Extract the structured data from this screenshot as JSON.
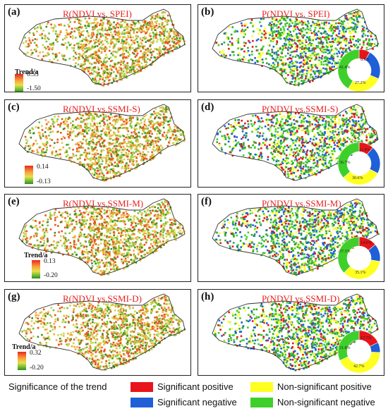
{
  "panels": {
    "a": {
      "label": "(a)",
      "title": "R(NDVI vs. SPEI)",
      "cbar_title": "Trend/a",
      "cbar_max": "0.55",
      "cbar_min": "-1.50"
    },
    "b": {
      "label": "(b)",
      "title": "P(NDVI vs. SPEI)",
      "pct": {
        "sig_pos": "8.5%",
        "sig_neg": "",
        "nonsig_pos": "27.2%",
        "nonsig_neg": "41.4%"
      },
      "fractions": [
        0.085,
        0.229,
        0.272,
        0.414
      ]
    },
    "c": {
      "label": "(c)",
      "title": "R(NDVI vs.SSMI-S)",
      "cbar_title": "Trend/a",
      "cbar_max": "0.14",
      "cbar_min": "-0.13"
    },
    "d": {
      "label": "(d)",
      "title": "P(NDVI vs.SSMI-S)",
      "pct": {
        "sig_pos": "11.4%",
        "sig_neg": "",
        "nonsig_pos": "30.6%",
        "nonsig_neg": "36.7%"
      },
      "fractions": [
        0.114,
        0.213,
        0.306,
        0.367
      ]
    },
    "e": {
      "label": "(e)",
      "title": "R(NDVI vs.SSMI-M)",
      "cbar_title": "Trend/a",
      "cbar_max": "0.13",
      "cbar_min": "-0.20"
    },
    "f": {
      "label": "(f)",
      "title": "P(NDVI vs.SSMI-M)",
      "pct": {
        "sig_pos": "14.0%",
        "sig_neg": "",
        "nonsig_pos": "35.1%",
        "nonsig_neg": "37.3%"
      },
      "fractions": [
        0.14,
        0.136,
        0.351,
        0.373
      ]
    },
    "g": {
      "label": "(g)",
      "title": "R(NDVI vs.SSMI-D)",
      "cbar_title": "Trend/a",
      "cbar_max": "0.32",
      "cbar_min": "-0.20"
    },
    "h": {
      "label": "(h)",
      "title": "P(NDVI vs.SSMI-D)",
      "pct": {
        "sig_pos": "17.7%",
        "sig_neg": "",
        "nonsig_pos": "42.7%",
        "nonsig_neg": "31.8%"
      },
      "fractions": [
        0.177,
        0.078,
        0.427,
        0.318
      ]
    }
  },
  "legend": {
    "title": "Significance of the trend",
    "items": [
      {
        "label": "Significant positive",
        "color": "#e8141a"
      },
      {
        "label": "Significant negative",
        "color": "#1f5fd8"
      },
      {
        "label": "Non-significant positive",
        "color": "#ffff22"
      },
      {
        "label": "Non-significant negative",
        "color": "#3fcf2a"
      }
    ]
  },
  "colors": {
    "sig_pos": "#e8141a",
    "sig_neg": "#1f5fd8",
    "nonsig_pos": "#ffff22",
    "nonsig_neg": "#3fcf2a",
    "border": "#222222"
  }
}
